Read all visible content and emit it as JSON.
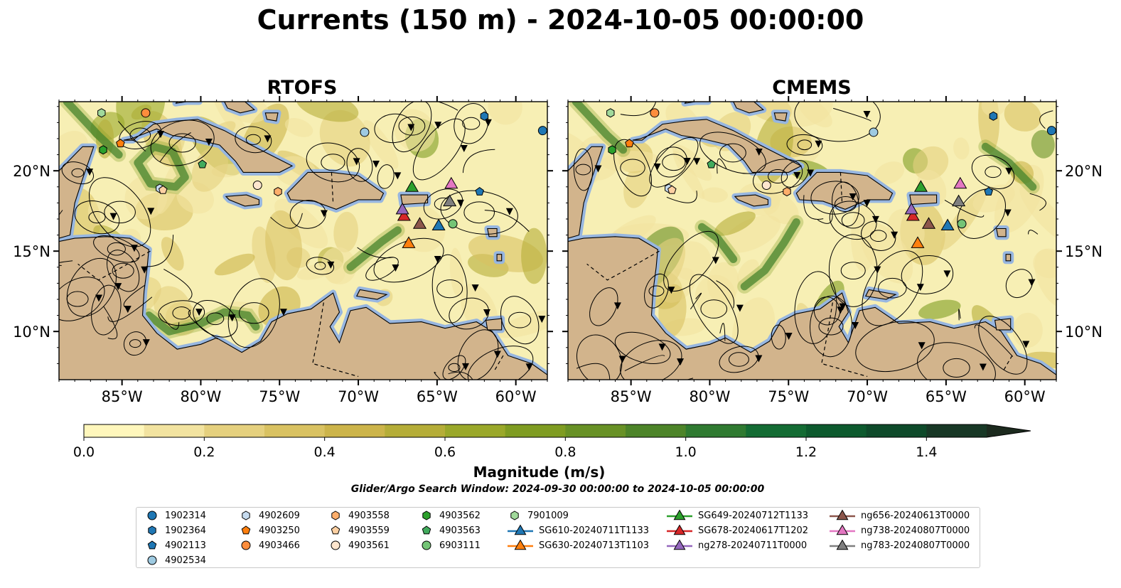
{
  "title": "Currents (150 m) - 2024-10-05 00:00:00",
  "panels": [
    {
      "title": "RTOFS"
    },
    {
      "title": "CMEMS"
    }
  ],
  "axes": {
    "lon_ticks": [
      {
        "lon": -85,
        "label": "85°W"
      },
      {
        "lon": -80,
        "label": "80°W"
      },
      {
        "lon": -75,
        "label": "75°W"
      },
      {
        "lon": -70,
        "label": "70°W"
      },
      {
        "lon": -65,
        "label": "65°W"
      },
      {
        "lon": -60,
        "label": "60°W"
      }
    ],
    "lat_ticks": [
      {
        "lat": 20,
        "label": "20°N"
      },
      {
        "lat": 15,
        "label": "15°N"
      },
      {
        "lat": 10,
        "label": "10°N"
      }
    ],
    "lon_range": [
      -89.0,
      -58.0
    ],
    "lat_range": [
      7.0,
      24.3
    ]
  },
  "colorbar": {
    "label": "Magnitude (m/s)",
    "range": [
      0.0,
      1.5
    ],
    "extend": "max",
    "tick_labels": [
      {
        "value": 0.0,
        "label": "0.0"
      },
      {
        "value": 0.2,
        "label": "0.2"
      },
      {
        "value": 0.4,
        "label": "0.4"
      },
      {
        "value": 0.6,
        "label": "0.6"
      },
      {
        "value": 0.8,
        "label": "0.8"
      },
      {
        "value": 1.0,
        "label": "1.0"
      },
      {
        "value": 1.2,
        "label": "1.2"
      },
      {
        "value": 1.4,
        "label": "1.4"
      }
    ],
    "colors": [
      "#fff7bc",
      "#f2e3a0",
      "#e5d07e",
      "#d9c262",
      "#ccb44a",
      "#b5ad38",
      "#9aa82a",
      "#7f9c22",
      "#689126",
      "#4d8429",
      "#2f7a31",
      "#146c34",
      "#0d5a2e",
      "#0e4a2a",
      "#183826",
      "#1c2a1e"
    ]
  },
  "search_window": "Glider/Argo Search Window: 2024-09-30 00:00:00 to 2024-10-05 00:00:00",
  "colors": {
    "ocean": "#f7efb4",
    "land": "#d2b48c",
    "shelf": "#97b6e0"
  },
  "legend": [
    {
      "label": "1902314",
      "marker": "circle",
      "color": "#1f77b4",
      "line": false
    },
    {
      "label": "1902364",
      "marker": "hexagon",
      "color": "#1f77b4",
      "line": false
    },
    {
      "label": "4902113",
      "marker": "pentagon",
      "color": "#1f77b4",
      "line": false
    },
    {
      "label": "4902534",
      "marker": "circle",
      "color": "#9ecae1",
      "line": false
    },
    {
      "label": "4902609",
      "marker": "hexagon",
      "color": "#c6dbef",
      "line": false
    },
    {
      "label": "4903250",
      "marker": "pentagon",
      "color": "#ff7f0e",
      "line": false
    },
    {
      "label": "4903466",
      "marker": "circle",
      "color": "#fd8d3c",
      "line": false
    },
    {
      "label": "4903558",
      "marker": "hexagon",
      "color": "#fdae6b",
      "line": false
    },
    {
      "label": "4903559",
      "marker": "pentagon",
      "color": "#fdd0a2",
      "line": false
    },
    {
      "label": "4903561",
      "marker": "circle",
      "color": "#fee6ce",
      "line": false
    },
    {
      "label": "4903562",
      "marker": "hexagon",
      "color": "#2ca02c",
      "line": false
    },
    {
      "label": "4903563",
      "marker": "pentagon",
      "color": "#41ab5d",
      "line": false
    },
    {
      "label": "6903111",
      "marker": "circle",
      "color": "#74c476",
      "line": false
    },
    {
      "label": "7901009",
      "marker": "hexagon",
      "color": "#a1d99b",
      "line": false
    },
    {
      "label": "SG610-20240711T1133",
      "marker": "triangle",
      "color": "#1f77b4",
      "line": true
    },
    {
      "label": "SG630-20240713T1103",
      "marker": "triangle",
      "color": "#ff7f0e",
      "line": true
    },
    {
      "label": "SG649-20240712T1133",
      "marker": "triangle",
      "color": "#2ca02c",
      "line": true
    },
    {
      "label": "SG678-20240617T1202",
      "marker": "triangle",
      "color": "#d62728",
      "line": true
    },
    {
      "label": "ng278-20240711T0000",
      "marker": "triangle",
      "color": "#9467bd",
      "line": true
    },
    {
      "label": "ng656-20240613T0000",
      "marker": "triangle",
      "color": "#8c564b",
      "line": true
    },
    {
      "label": "ng738-20240807T0000",
      "marker": "triangle",
      "color": "#e377c2",
      "line": true
    },
    {
      "label": "ng783-20240807T0000",
      "marker": "triangle",
      "color": "#7f7f7f",
      "line": true
    }
  ],
  "platforms": [
    {
      "label": "1902314",
      "lon": -58.3,
      "lat": 22.5
    },
    {
      "label": "1902364",
      "lon": -62.0,
      "lat": 23.4
    },
    {
      "label": "4902113",
      "lon": -62.3,
      "lat": 18.7
    },
    {
      "label": "4902534",
      "lon": -69.6,
      "lat": 22.4
    },
    {
      "label": "4902609",
      "lon": -82.6,
      "lat": 18.9
    },
    {
      "label": "4903250",
      "lon": -85.1,
      "lat": 21.7
    },
    {
      "label": "4903466",
      "lon": -83.5,
      "lat": 23.6
    },
    {
      "label": "4903558",
      "lon": -75.1,
      "lat": 18.7
    },
    {
      "label": "4903559",
      "lon": -82.4,
      "lat": 18.8
    },
    {
      "label": "4903561",
      "lon": -76.4,
      "lat": 19.1
    },
    {
      "label": "4903562",
      "lon": -86.2,
      "lat": 21.3
    },
    {
      "label": "4903563",
      "lon": -79.9,
      "lat": 20.4
    },
    {
      "label": "6903111",
      "lon": -64.0,
      "lat": 16.7
    },
    {
      "label": "7901009",
      "lon": -86.3,
      "lat": 23.6
    },
    {
      "label": "SG610-20240711T1133",
      "lon": -64.9,
      "lat": 16.6
    },
    {
      "label": "SG630-20240713T1103",
      "lon": -66.8,
      "lat": 15.5
    },
    {
      "label": "SG649-20240712T1133",
      "lon": -66.6,
      "lat": 19.0
    },
    {
      "label": "SG678-20240617T1202",
      "lon": -67.1,
      "lat": 17.2
    },
    {
      "label": "ng278-20240711T0000",
      "lon": -67.2,
      "lat": 17.6
    },
    {
      "label": "ng656-20240613T0000",
      "lon": -66.1,
      "lat": 16.7
    },
    {
      "label": "ng738-20240807T0000",
      "lon": -64.1,
      "lat": 19.2
    },
    {
      "label": "ng783-20240807T0000",
      "lon": -64.2,
      "lat": 18.1
    }
  ]
}
